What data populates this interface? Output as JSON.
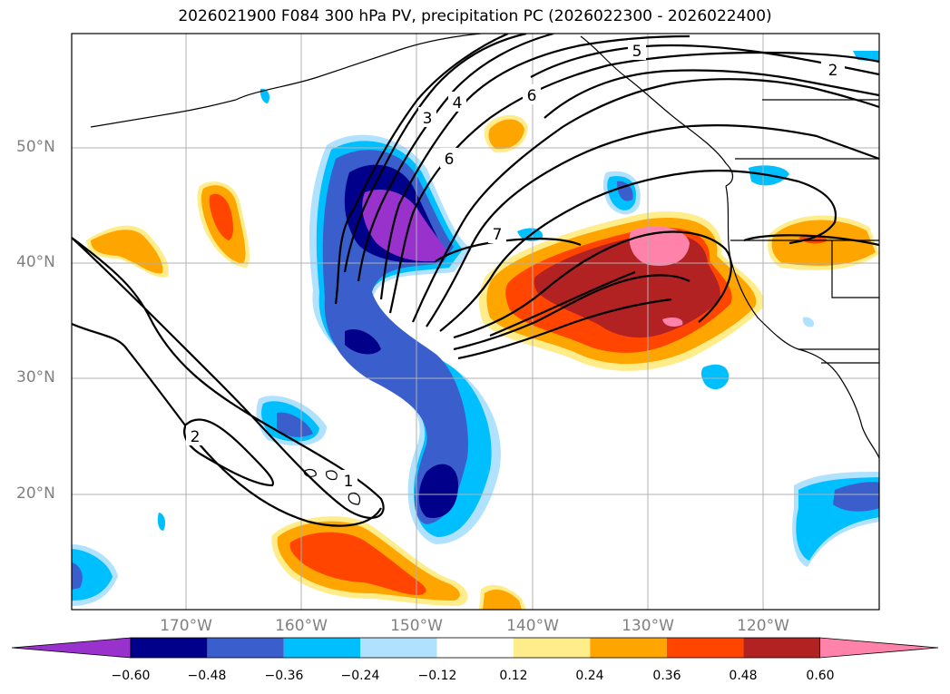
{
  "title": "2026021900 F084 300 hPa PV, precipitation PC (2026022300 - 2026022400)",
  "latitude_labels": [
    "50°N",
    "40°N",
    "30°N",
    "20°N"
  ],
  "longitude_labels": [
    "170°W",
    "160°W",
    "150°W",
    "140°W",
    "130°W",
    "120°W"
  ],
  "contour_labels": [
    "2",
    "3",
    "4",
    "5",
    "6",
    "6",
    "7",
    "2",
    "1"
  ],
  "colorbar": {
    "tick_labels": [
      "−0.60",
      "−0.48",
      "−0.36",
      "−0.24",
      "−0.12",
      "0.12",
      "0.24",
      "0.36",
      "0.48",
      "0.60"
    ],
    "colors": [
      "#9932cc",
      "#00008b",
      "#3a5fcd",
      "#00bfff",
      "#b0e2ff",
      "#ffffff",
      "#ffec8b",
      "#ffa500",
      "#ff4500",
      "#b22222",
      "#ff82ab"
    ]
  }
}
